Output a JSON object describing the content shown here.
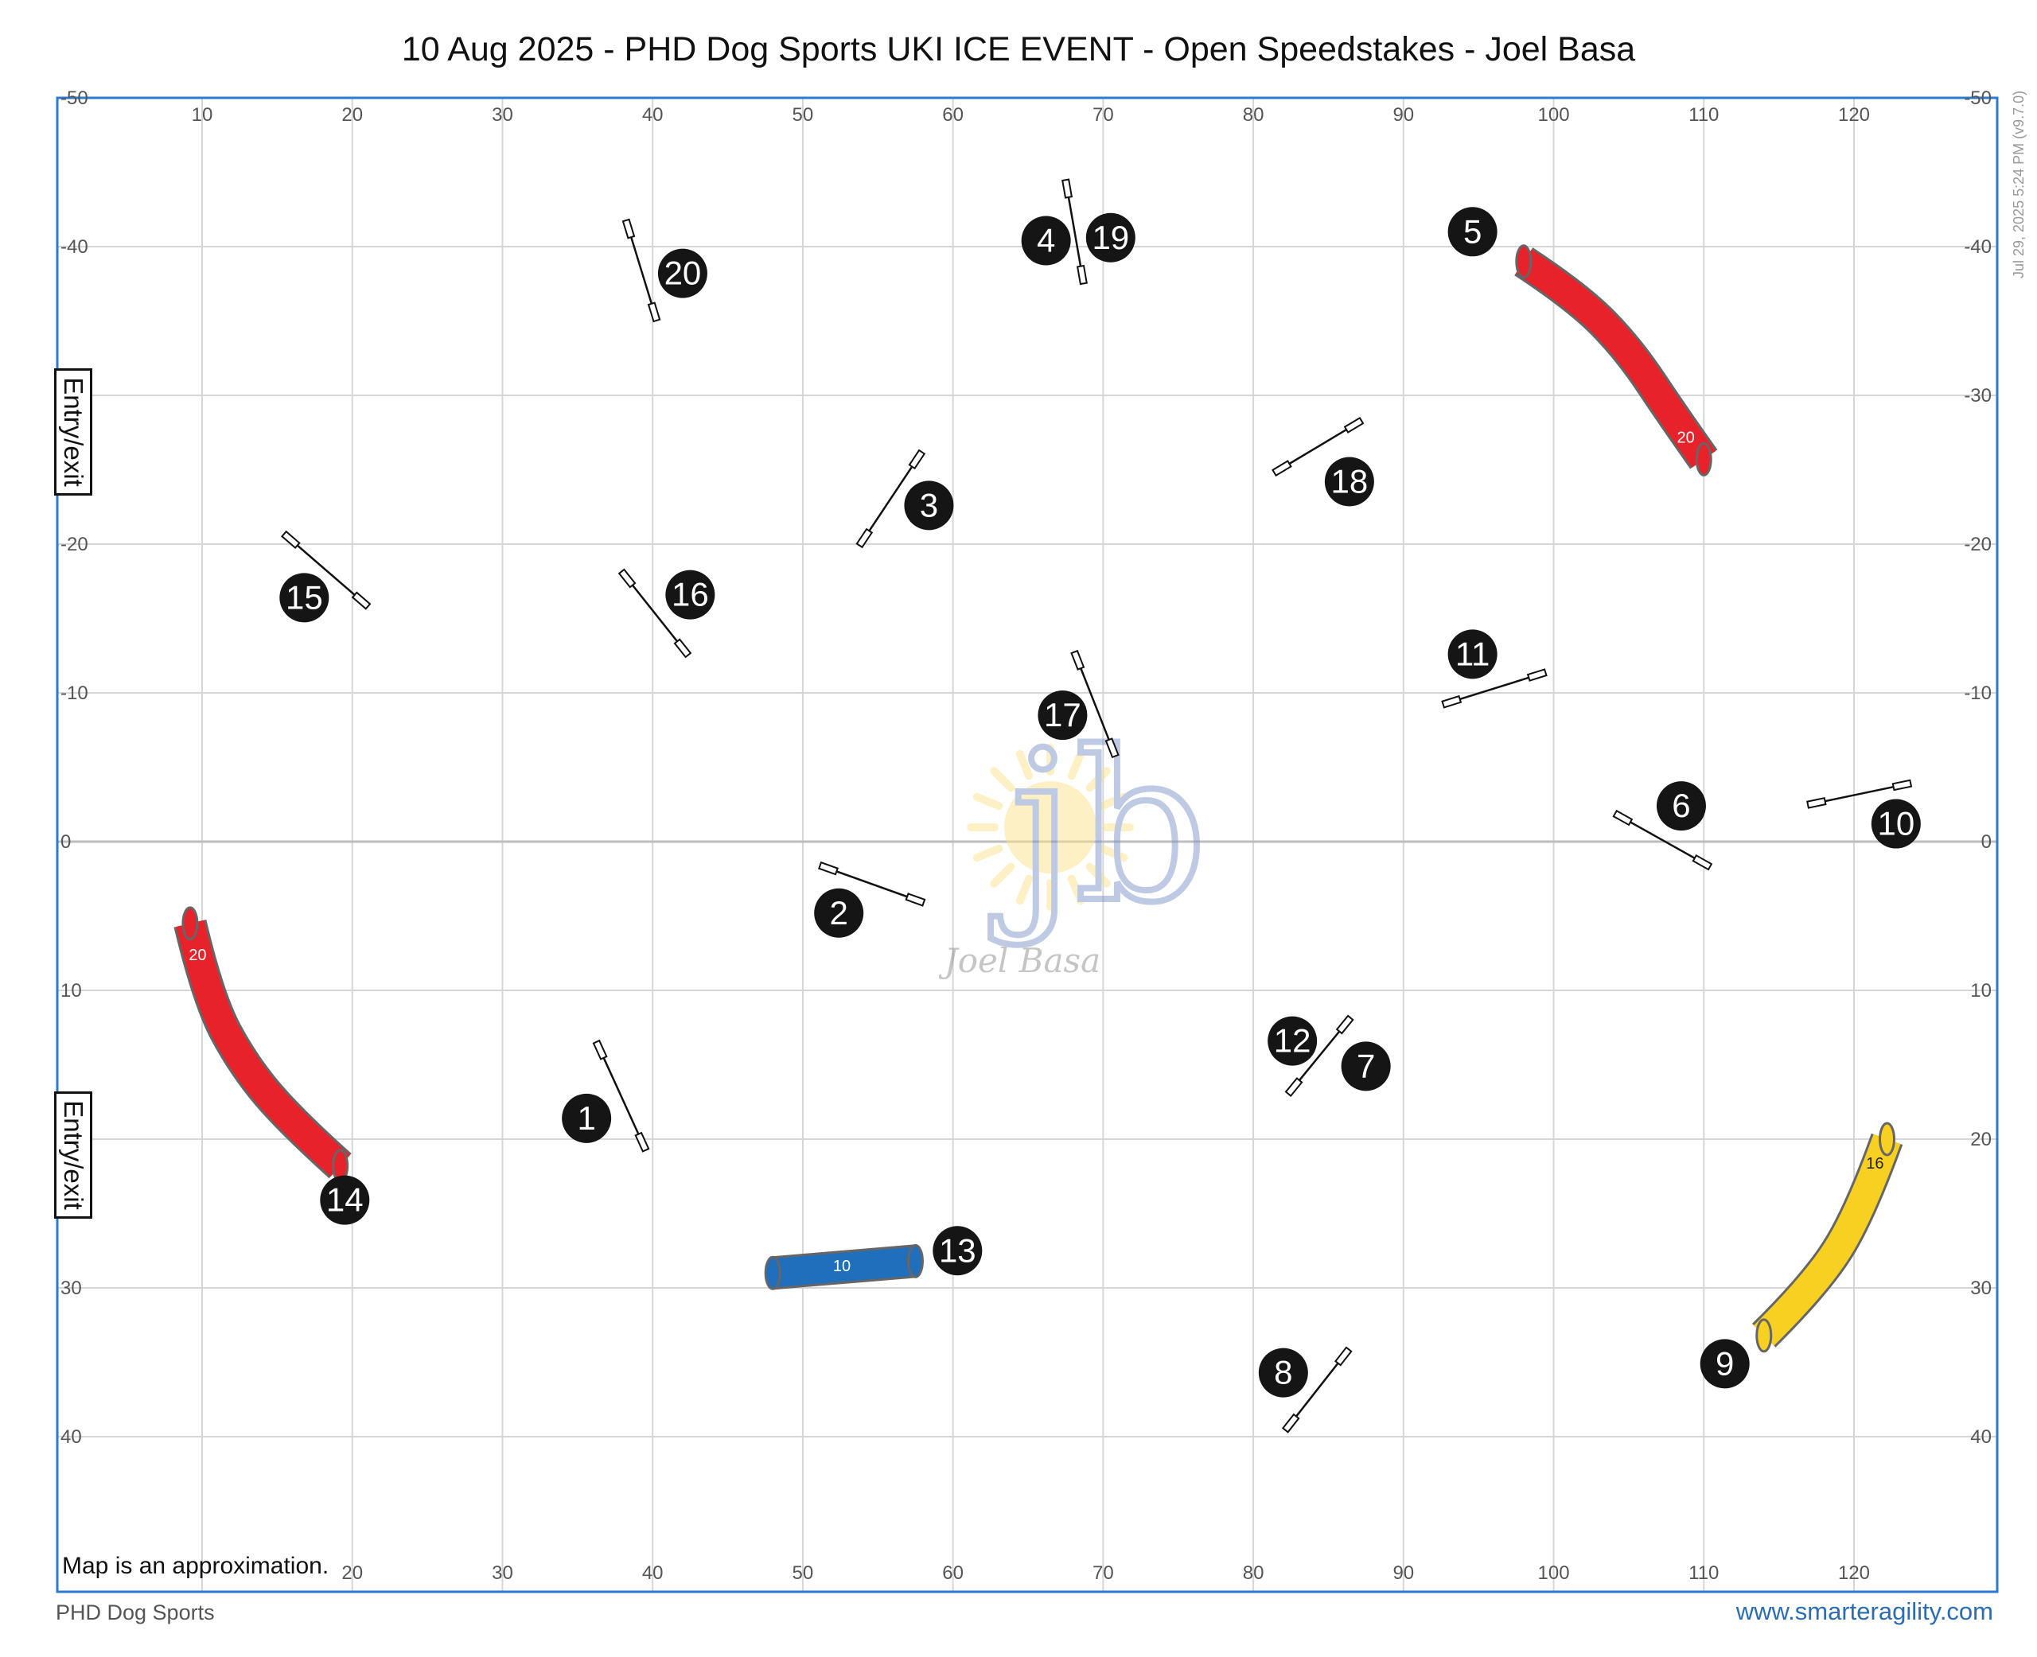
{
  "title": "10 Aug 2025 - PHD Dog Sports UKI ICE EVENT - Open Speedstakes - Joel Basa",
  "version": "Jul 29, 2025 5:24 PM  (v9.7.0)",
  "footer_left": "PHD Dog Sports",
  "footer_right": "www.smarteragility.com",
  "note": "Map is an approximation.",
  "entry_label": "Entry/exit",
  "watermark": {
    "initials": "jb",
    "name": "Joel Basa"
  },
  "colors": {
    "frame": "#2a7bd1",
    "grid": "#d6d6d6",
    "tunnel_red": "#e8222a",
    "tunnel_blue": "#1f6fbd",
    "tunnel_yellow": "#f7d022",
    "marker": "#111111"
  },
  "axes": {
    "x_ticks_top": [
      "10",
      "20",
      "30",
      "40",
      "50",
      "60",
      "70",
      "80",
      "90",
      "100",
      "110",
      "120"
    ],
    "x_ticks_bottom": [
      "20",
      "30",
      "40",
      "50",
      "60",
      "70",
      "80",
      "90",
      "100",
      "110",
      "120"
    ],
    "y_ticks": [
      "-50",
      "-40",
      "-30",
      "-20",
      "-10",
      "0",
      "10",
      "20",
      "30",
      "40"
    ]
  },
  "course": {
    "jumps": [
      {
        "number": "1",
        "x1": 36.5,
        "y1": 14,
        "x2": 39.3,
        "y2": 20.2,
        "lx": 35.6,
        "ly": 18.6
      },
      {
        "number": "2",
        "x1": 51.7,
        "y1": 1.8,
        "x2": 57.5,
        "y2": 3.9,
        "lx": 52.4,
        "ly": 4.8
      },
      {
        "number": "3",
        "x1": 54.1,
        "y1": -20.4,
        "x2": 57.6,
        "y2": -25.7,
        "lx": 58.4,
        "ly": -22.6
      },
      {
        "number": "4",
        "x1": 67.6,
        "y1": -43.9,
        "x2": 68.6,
        "y2": -38.1,
        "lx": 66.2,
        "ly": -40.4
      },
      {
        "number": "6",
        "x1": 104.6,
        "y1": -1.6,
        "x2": 109.9,
        "y2": 1.4,
        "lx": 108.5,
        "ly": -2.4
      },
      {
        "number": "7",
        "x1": 82.7,
        "y1": 16.5,
        "x2": 86.1,
        "y2": 12.3,
        "lx": 87.5,
        "ly": 15.1
      },
      {
        "number": "8",
        "x1": 82.5,
        "y1": 39.1,
        "x2": 86,
        "y2": 34.6,
        "lx": 82,
        "ly": 35.7
      },
      {
        "number": "10",
        "x1": 117.5,
        "y1": -2.6,
        "x2": 123.2,
        "y2": -3.8,
        "lx": 122.8,
        "ly": -1.2
      },
      {
        "number": "11",
        "x1": 93.2,
        "y1": -9.4,
        "x2": 98.9,
        "y2": -11.2,
        "lx": 94.6,
        "ly": -12.6
      },
      {
        "number": "15",
        "x1": 15.9,
        "y1": -20.3,
        "x2": 20.6,
        "y2": -16.2,
        "lx": 16.8,
        "ly": -16.4
      },
      {
        "number": "16",
        "x1": 38.3,
        "y1": -17.7,
        "x2": 42,
        "y2": -13,
        "lx": 42.5,
        "ly": -16.6
      },
      {
        "number": "17",
        "x1": 68.3,
        "y1": -12.2,
        "x2": 70.6,
        "y2": -6.3,
        "lx": 67.3,
        "ly": -8.5
      },
      {
        "number": "18",
        "x1": 81.9,
        "y1": -25.1,
        "x2": 86.7,
        "y2": -28,
        "lx": 86.4,
        "ly": -24.2
      },
      {
        "number": "20",
        "x1": 38.4,
        "y1": -41.2,
        "x2": 40.1,
        "y2": -35.6,
        "lx": 42,
        "ly": -38.2
      }
    ],
    "jump_labels": [
      {
        "number": "12",
        "lx": 82.6,
        "ly": 13.4
      },
      {
        "number": "19",
        "lx": 70.5,
        "ly": -40.6
      }
    ],
    "tunnels": [
      {
        "number": "5",
        "length": "20",
        "color": "red",
        "label_x": 94.6,
        "label_y": -41,
        "path": [
          [
            98,
            -39
          ],
          [
            101.6,
            -36.6
          ],
          [
            105,
            -33.1
          ],
          [
            107.9,
            -28.7
          ],
          [
            110,
            -25.7
          ]
        ],
        "tag_x": 108.8,
        "tag_y": -27.2
      },
      {
        "number": "14",
        "length": "20",
        "color": "red",
        "label_x": 19.5,
        "label_y": 24.1,
        "path": [
          [
            9.2,
            5.5
          ],
          [
            10.4,
            10.6
          ],
          [
            12.8,
            15.1
          ],
          [
            15.9,
            18.8
          ],
          [
            19.2,
            21.8
          ]
        ],
        "tag_x": 9.7,
        "tag_y": 7.6
      },
      {
        "number": "13",
        "length": "10",
        "color": "blue",
        "label_x": 60.3,
        "label_y": 27.5,
        "path": [
          [
            48,
            29
          ],
          [
            57.5,
            28.2
          ]
        ],
        "tag_x": 52.6,
        "tag_y": 28.5
      },
      {
        "number": "9",
        "length": "16",
        "color": "yellow",
        "label_x": 111.4,
        "label_y": 35.1,
        "path": [
          [
            114,
            33.2
          ],
          [
            117.5,
            29.7
          ],
          [
            120.4,
            25
          ],
          [
            122.2,
            20
          ]
        ],
        "tag_x": 121.4,
        "tag_y": 21.6
      }
    ]
  }
}
